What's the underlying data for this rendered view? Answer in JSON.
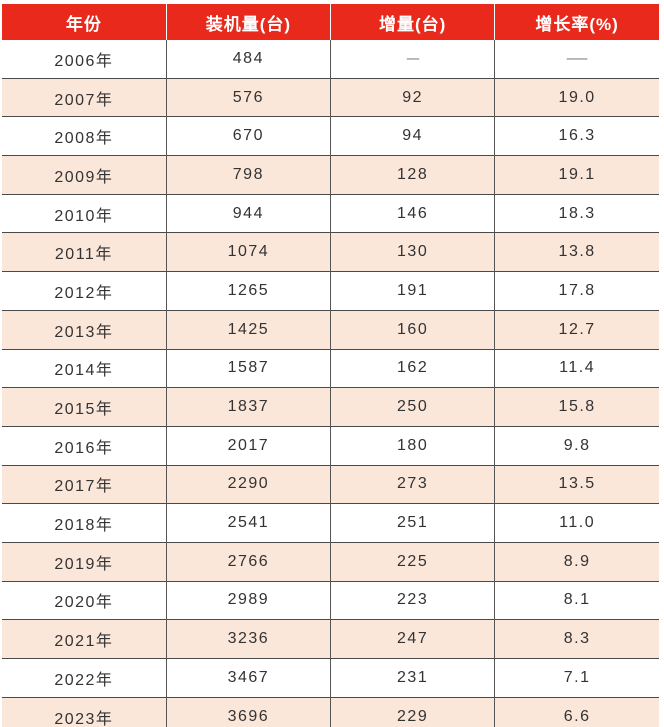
{
  "colors": {
    "page_bg": "#ffffff",
    "header_bg": "#e8291c",
    "header_text": "#ffffff",
    "row_bg": "#ffffff",
    "row_alt_bg": "#fbe6da",
    "grid_horizontal": "#4a4a4a",
    "grid_vertical": "#555555",
    "bottom_border": "#3a3a3a",
    "text": "#333333",
    "dash_text": "#7f7f7f"
  },
  "chart_data": {
    "type": "table",
    "title": "",
    "columns": [
      "年份",
      "装机量(台)",
      "增量(台)",
      "增长率(%)"
    ],
    "column_keys": [
      "year",
      "installed_units",
      "increment_units",
      "growth_rate_pct"
    ],
    "rows": [
      [
        "2006年",
        "484",
        "—",
        "——"
      ],
      [
        "2007年",
        "576",
        "92",
        "19.0"
      ],
      [
        "2008年",
        "670",
        "94",
        "16.3"
      ],
      [
        "2009年",
        "798",
        "128",
        "19.1"
      ],
      [
        "2010年",
        "944",
        "146",
        "18.3"
      ],
      [
        "2011年",
        "1074",
        "130",
        "13.8"
      ],
      [
        "2012年",
        "1265",
        "191",
        "17.8"
      ],
      [
        "2013年",
        "1425",
        "160",
        "12.7"
      ],
      [
        "2014年",
        "1587",
        "162",
        "11.4"
      ],
      [
        "2015年",
        "1837",
        "250",
        "15.8"
      ],
      [
        "2016年",
        "2017",
        "180",
        "9.8"
      ],
      [
        "2017年",
        "2290",
        "273",
        "13.5"
      ],
      [
        "2018年",
        "2541",
        "251",
        "11.0"
      ],
      [
        "2019年",
        "2766",
        "225",
        "8.9"
      ],
      [
        "2020年",
        "2989",
        "223",
        "8.1"
      ],
      [
        "2021年",
        "3236",
        "247",
        "8.3"
      ],
      [
        "2022年",
        "3467",
        "231",
        "7.1"
      ],
      [
        "2023年",
        "3696",
        "229",
        "6.6"
      ]
    ],
    "series": [
      {
        "name": "装机量(台)",
        "values": [
          484,
          576,
          670,
          798,
          944,
          1074,
          1265,
          1425,
          1587,
          1837,
          2017,
          2290,
          2541,
          2766,
          2989,
          3236,
          3467,
          3696
        ]
      },
      {
        "name": "增量(台)",
        "values": [
          null,
          92,
          94,
          128,
          146,
          130,
          191,
          160,
          162,
          250,
          180,
          273,
          251,
          225,
          223,
          247,
          231,
          229
        ]
      },
      {
        "name": "增长率(%)",
        "values": [
          null,
          19.0,
          16.3,
          19.1,
          18.3,
          13.8,
          17.8,
          12.7,
          11.4,
          15.8,
          9.8,
          13.5,
          11.0,
          8.9,
          8.1,
          8.3,
          7.1,
          6.6
        ]
      }
    ],
    "x": [
      2006,
      2007,
      2008,
      2009,
      2010,
      2011,
      2012,
      2013,
      2014,
      2015,
      2016,
      2017,
      2018,
      2019,
      2020,
      2021,
      2022,
      2023
    ],
    "missing_value_marker": "—",
    "layout": {
      "header_style": "red-band",
      "row_striping": "alternate-pink",
      "grid": true
    }
  }
}
